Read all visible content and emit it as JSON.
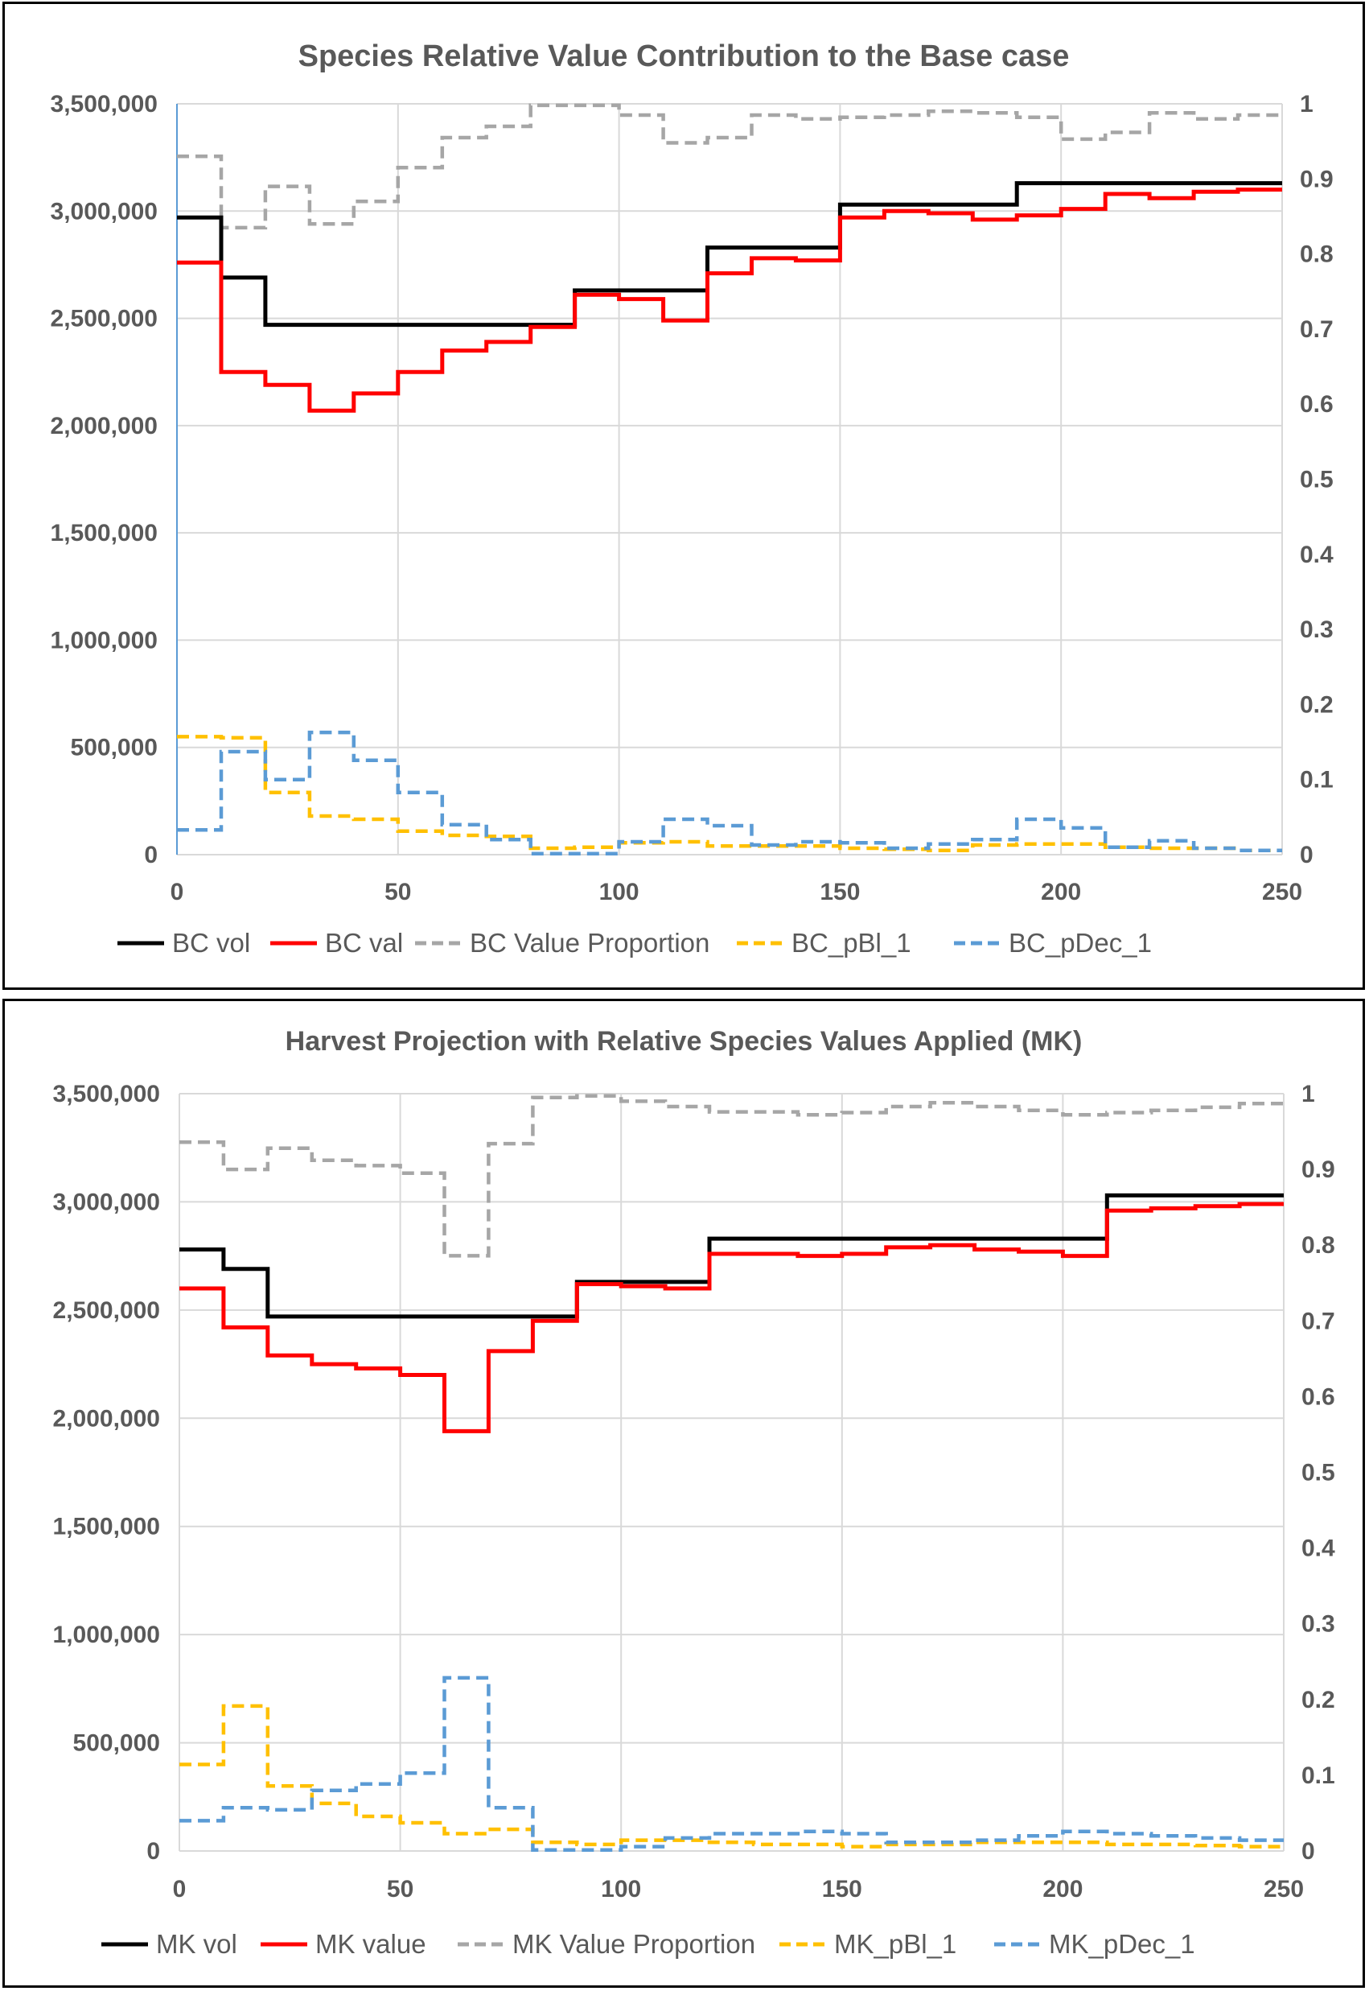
{
  "chart_data": [
    {
      "type": "line",
      "step": true,
      "title": "Species Relative Value Contribution to the Base case",
      "x_ticks": [
        "0",
        "50",
        "100",
        "150",
        "200",
        "250"
      ],
      "xlim": [
        0,
        250
      ],
      "y_ticks": [
        "0",
        "500,000",
        "1,000,000",
        "1,500,000",
        "2,000,000",
        "2,500,000",
        "3,000,000",
        "3,500,000"
      ],
      "ylim": [
        0,
        3500000
      ],
      "y2_ticks": [
        "0",
        "0.1",
        "0.2",
        "0.3",
        "0.4",
        "0.5",
        "0.6",
        "0.7",
        "0.8",
        "0.9",
        "1"
      ],
      "y2lim": [
        0,
        1
      ],
      "grid": true,
      "legend_position": "bottom",
      "x": [
        0,
        10,
        20,
        30,
        40,
        50,
        60,
        70,
        80,
        90,
        100,
        110,
        120,
        130,
        140,
        150,
        160,
        170,
        180,
        190,
        200,
        210,
        220,
        230,
        240,
        250
      ],
      "series": [
        {
          "name": "BC vol",
          "axis": "primary",
          "color": "#000000",
          "dash": "solid",
          "values": [
            2970000,
            2690000,
            2470000,
            2470000,
            2470000,
            2470000,
            2470000,
            2470000,
            2470000,
            2630000,
            2630000,
            2630000,
            2830000,
            2830000,
            2830000,
            3030000,
            3030000,
            3030000,
            3030000,
            3130000,
            3130000,
            3130000,
            3130000,
            3130000,
            3130000,
            3130000
          ]
        },
        {
          "name": "BC val",
          "axis": "primary",
          "color": "#ff0000",
          "dash": "solid",
          "values": [
            2760000,
            2250000,
            2190000,
            2070000,
            2150000,
            2250000,
            2350000,
            2390000,
            2460000,
            2610000,
            2590000,
            2490000,
            2710000,
            2780000,
            2770000,
            2970000,
            3000000,
            2990000,
            2960000,
            2980000,
            3010000,
            3080000,
            3060000,
            3090000,
            3100000,
            3100000
          ]
        },
        {
          "name": "BC Value Proportion",
          "axis": "secondary",
          "color": "#a6a6a6",
          "dash": "dashed",
          "values": [
            0.93,
            0.835,
            0.89,
            0.84,
            0.87,
            0.915,
            0.955,
            0.97,
            0.998,
            0.998,
            0.985,
            0.948,
            0.955,
            0.985,
            0.98,
            0.982,
            0.985,
            0.99,
            0.988,
            0.982,
            0.953,
            0.962,
            0.988,
            0.98,
            0.985,
            0.99
          ]
        },
        {
          "name": "BC_pBl_1",
          "axis": "primary",
          "color": "#ffc000",
          "dash": "dashed",
          "values": [
            550000,
            545000,
            290000,
            180000,
            165000,
            110000,
            90000,
            85000,
            30000,
            35000,
            55000,
            60000,
            40000,
            40000,
            40000,
            30000,
            25000,
            20000,
            45000,
            50000,
            50000,
            35000,
            30000,
            30000,
            20000,
            20000
          ]
        },
        {
          "name": "BC_pDec_1",
          "axis": "primary",
          "color": "#5b9bd5",
          "dash": "dashed",
          "values": [
            115000,
            480000,
            350000,
            570000,
            440000,
            290000,
            140000,
            70000,
            5000,
            5000,
            60000,
            165000,
            135000,
            45000,
            60000,
            55000,
            30000,
            50000,
            70000,
            165000,
            125000,
            35000,
            65000,
            30000,
            20000,
            20000
          ]
        }
      ]
    },
    {
      "type": "line",
      "step": true,
      "title": "Harvest Projection with Relative Species Values Applied (MK)",
      "x_ticks": [
        "0",
        "50",
        "100",
        "150",
        "200",
        "250"
      ],
      "xlim": [
        0,
        250
      ],
      "y_ticks": [
        "0",
        "500,000",
        "1,000,000",
        "1,500,000",
        "2,000,000",
        "2,500,000",
        "3,000,000",
        "3,500,000"
      ],
      "ylim": [
        0,
        3500000
      ],
      "y2_ticks": [
        "0",
        "0.1",
        "0.2",
        "0.3",
        "0.4",
        "0.5",
        "0.6",
        "0.7",
        "0.8",
        "0.9",
        "1"
      ],
      "y2lim": [
        0,
        1
      ],
      "grid": true,
      "legend_position": "bottom",
      "x": [
        0,
        10,
        20,
        30,
        40,
        50,
        60,
        70,
        80,
        90,
        100,
        110,
        120,
        130,
        140,
        150,
        160,
        170,
        180,
        190,
        200,
        210,
        220,
        230,
        240,
        250
      ],
      "series": [
        {
          "name": "MK vol",
          "axis": "primary",
          "color": "#000000",
          "dash": "solid",
          "values": [
            2780000,
            2690000,
            2470000,
            2470000,
            2470000,
            2470000,
            2470000,
            2470000,
            2470000,
            2630000,
            2630000,
            2630000,
            2830000,
            2830000,
            2830000,
            2830000,
            2830000,
            2830000,
            2830000,
            2830000,
            2830000,
            3030000,
            3030000,
            3030000,
            3030000,
            3030000
          ]
        },
        {
          "name": "MK value",
          "axis": "primary",
          "color": "#ff0000",
          "dash": "solid",
          "values": [
            2600000,
            2420000,
            2290000,
            2250000,
            2230000,
            2200000,
            1940000,
            2310000,
            2450000,
            2620000,
            2610000,
            2600000,
            2760000,
            2760000,
            2750000,
            2760000,
            2790000,
            2800000,
            2780000,
            2770000,
            2750000,
            2960000,
            2970000,
            2980000,
            2990000,
            2990000
          ]
        },
        {
          "name": "MK Value Proportion",
          "axis": "secondary",
          "color": "#a6a6a6",
          "dash": "dashed",
          "values": [
            0.936,
            0.9,
            0.928,
            0.912,
            0.905,
            0.895,
            0.786,
            0.934,
            0.995,
            0.997,
            0.99,
            0.983,
            0.976,
            0.976,
            0.972,
            0.975,
            0.983,
            0.988,
            0.983,
            0.978,
            0.972,
            0.975,
            0.978,
            0.982,
            0.987,
            0.987
          ]
        },
        {
          "name": "MK_pBl_1",
          "axis": "primary",
          "color": "#ffc000",
          "dash": "dashed",
          "values": [
            400000,
            670000,
            300000,
            220000,
            160000,
            130000,
            80000,
            100000,
            40000,
            30000,
            50000,
            50000,
            40000,
            30000,
            30000,
            20000,
            30000,
            30000,
            40000,
            40000,
            40000,
            30000,
            30000,
            25000,
            20000,
            20000
          ]
        },
        {
          "name": "MK_pDec_1",
          "axis": "primary",
          "color": "#5b9bd5",
          "dash": "dashed",
          "values": [
            140000,
            200000,
            190000,
            280000,
            310000,
            360000,
            800000,
            200000,
            5000,
            5000,
            20000,
            60000,
            80000,
            80000,
            90000,
            80000,
            40000,
            40000,
            50000,
            70000,
            90000,
            80000,
            70000,
            60000,
            50000,
            40000
          ]
        }
      ]
    }
  ]
}
